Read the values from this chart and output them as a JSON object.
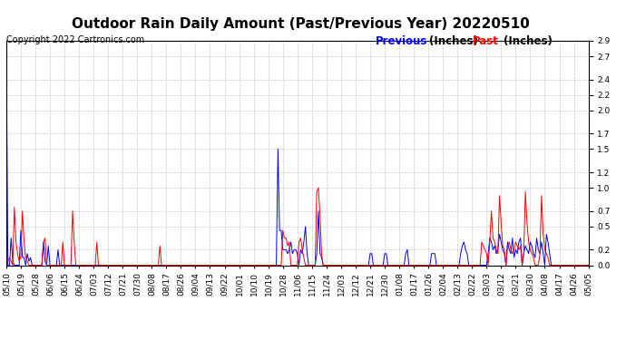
{
  "title": "Outdoor Rain Daily Amount (Past/Previous Year) 20220510",
  "copyright": "Copyright 2022 Cartronics.com",
  "legend_previous": "Previous",
  "legend_past": "Past",
  "legend_units": "(Inches)",
  "ylim": [
    0.0,
    2.9
  ],
  "yticks": [
    0.0,
    0.2,
    0.5,
    0.7,
    1.0,
    1.2,
    1.5,
    1.7,
    2.0,
    2.2,
    2.4,
    2.7,
    2.9
  ],
  "color_previous": "blue",
  "color_past": "red",
  "color_background": "white",
  "color_grid": "#bbbbbb",
  "title_fontsize": 11,
  "tick_fontsize": 6.5,
  "copyright_fontsize": 7,
  "legend_fontsize": 8.5,
  "xtick_labels": [
    "05/10",
    "05/19",
    "05/28",
    "06/06",
    "06/15",
    "06/24",
    "07/03",
    "07/12",
    "07/21",
    "07/30",
    "08/08",
    "08/17",
    "08/26",
    "09/04",
    "09/13",
    "09/22",
    "10/01",
    "10/10",
    "10/19",
    "10/28",
    "11/06",
    "11/15",
    "11/24",
    "12/03",
    "12/12",
    "12/21",
    "12/30",
    "01/08",
    "01/17",
    "01/26",
    "02/04",
    "02/13",
    "02/22",
    "03/03",
    "03/12",
    "03/21",
    "03/30",
    "04/08",
    "04/17",
    "04/26",
    "05/05"
  ],
  "previous_data": [
    2.85,
    0.0,
    0.0,
    0.35,
    0.05,
    0.0,
    0.0,
    0.0,
    0.0,
    0.45,
    0.1,
    0.1,
    0.0,
    0.15,
    0.05,
    0.1,
    0.0,
    0.0,
    0.0,
    0.0,
    0.0,
    0.0,
    0.0,
    0.3,
    0.05,
    0.0,
    0.25,
    0.0,
    0.0,
    0.0,
    0.0,
    0.0,
    0.2,
    0.0,
    0.0,
    0.0,
    0.0,
    0.0,
    0.0,
    0.0,
    0.0,
    0.0,
    0.0,
    0.0,
    0.0,
    0.0,
    0.0,
    0.0,
    0.0,
    0.0,
    0.0,
    0.0,
    0.0,
    0.0,
    0.0,
    0.0,
    0.0,
    0.0,
    0.0,
    0.0,
    0.0,
    0.0,
    0.0,
    0.0,
    0.0,
    0.0,
    0.0,
    0.0,
    0.0,
    0.0,
    0.0,
    0.0,
    0.0,
    0.0,
    0.0,
    0.0,
    0.0,
    0.0,
    0.0,
    0.0,
    0.0,
    0.0,
    0.0,
    0.0,
    0.0,
    0.0,
    0.0,
    0.0,
    0.0,
    0.0,
    0.0,
    0.0,
    0.0,
    0.0,
    0.0,
    0.0,
    0.0,
    0.0,
    0.0,
    0.0,
    0.0,
    0.0,
    0.0,
    0.0,
    0.0,
    0.0,
    0.0,
    0.0,
    0.0,
    0.0,
    0.0,
    0.0,
    0.0,
    0.0,
    0.0,
    0.0,
    0.0,
    0.0,
    0.0,
    0.0,
    0.0,
    0.0,
    0.0,
    0.0,
    0.0,
    0.0,
    0.0,
    0.0,
    0.0,
    0.0,
    0.0,
    0.0,
    0.0,
    0.0,
    0.0,
    0.0,
    0.0,
    0.0,
    0.0,
    0.0,
    0.0,
    0.0,
    0.0,
    0.0,
    0.0,
    0.0,
    0.0,
    0.0,
    0.0,
    0.0,
    0.0,
    0.0,
    0.0,
    0.0,
    0.0,
    0.0,
    0.0,
    0.0,
    0.0,
    0.0,
    0.0,
    0.0,
    0.0,
    0.0,
    0.0,
    0.0,
    0.0,
    0.0,
    1.5,
    0.45,
    0.45,
    0.2,
    0.2,
    0.2,
    0.15,
    0.2,
    0.3,
    0.15,
    0.2,
    0.2,
    0.15,
    0.0,
    0.2,
    0.15,
    0.3,
    0.5,
    0.15,
    0.0,
    0.0,
    0.0,
    0.0,
    0.0,
    0.15,
    0.7,
    0.15,
    0.1,
    0.0,
    0.0,
    0.0,
    0.0,
    0.0,
    0.0,
    0.0,
    0.0,
    0.0,
    0.0,
    0.0,
    0.0,
    0.0,
    0.0,
    0.0,
    0.0,
    0.0,
    0.0,
    0.0,
    0.0,
    0.0,
    0.0,
    0.0,
    0.0,
    0.0,
    0.0,
    0.0,
    0.0,
    0.0,
    0.15,
    0.15,
    0.0,
    0.0,
    0.0,
    0.0,
    0.0,
    0.0,
    0.0,
    0.15,
    0.15,
    0.0,
    0.0,
    0.0,
    0.0,
    0.0,
    0.0,
    0.0,
    0.0,
    0.0,
    0.0,
    0.0,
    0.15,
    0.2,
    0.0,
    0.0,
    0.0,
    0.0,
    0.0,
    0.0,
    0.0,
    0.0,
    0.0,
    0.0,
    0.0,
    0.0,
    0.0,
    0.0,
    0.15,
    0.15,
    0.15,
    0.0,
    0.0,
    0.0,
    0.0,
    0.0,
    0.0,
    0.0,
    0.0,
    0.0,
    0.0,
    0.0,
    0.0,
    0.0,
    0.0,
    0.0,
    0.15,
    0.25,
    0.3,
    0.2,
    0.15,
    0.0,
    0.0,
    0.0,
    0.0,
    0.0,
    0.0,
    0.0,
    0.0,
    0.0,
    0.0,
    0.0,
    0.0,
    0.15,
    0.35,
    0.3,
    0.2,
    0.25,
    0.15,
    0.2,
    0.4,
    0.3,
    0.2,
    0.15,
    0.0,
    0.3,
    0.2,
    0.15,
    0.35,
    0.1,
    0.2,
    0.15,
    0.3,
    0.35,
    0.0,
    0.15,
    0.25,
    0.2,
    0.15,
    0.3,
    0.25,
    0.15,
    0.1,
    0.35,
    0.2,
    0.15,
    0.3,
    0.15,
    0.0,
    0.4,
    0.3,
    0.15,
    0.0,
    0.0,
    0.0,
    0.0,
    0.0,
    0.0,
    0.0,
    0.0,
    0.0,
    0.0,
    0.0,
    0.0,
    0.0,
    0.0,
    0.0,
    0.0,
    0.0,
    0.0,
    0.0,
    0.0,
    0.0,
    0.0,
    0.0,
    0.0
  ],
  "past_data": [
    0.05,
    0.05,
    0.1,
    0.05,
    0.0,
    0.75,
    0.3,
    0.15,
    0.05,
    0.1,
    0.7,
    0.3,
    0.1,
    0.05,
    0.0,
    0.0,
    0.0,
    0.0,
    0.0,
    0.0,
    0.0,
    0.0,
    0.0,
    0.3,
    0.35,
    0.0,
    0.0,
    0.0,
    0.0,
    0.0,
    0.0,
    0.0,
    0.0,
    0.0,
    0.0,
    0.3,
    0.0,
    0.0,
    0.0,
    0.0,
    0.0,
    0.7,
    0.3,
    0.0,
    0.0,
    0.0,
    0.0,
    0.0,
    0.0,
    0.0,
    0.0,
    0.0,
    0.0,
    0.0,
    0.0,
    0.0,
    0.3,
    0.0,
    0.0,
    0.0,
    0.0,
    0.0,
    0.0,
    0.0,
    0.0,
    0.0,
    0.0,
    0.0,
    0.0,
    0.0,
    0.0,
    0.0,
    0.0,
    0.0,
    0.0,
    0.0,
    0.0,
    0.0,
    0.0,
    0.0,
    0.0,
    0.0,
    0.0,
    0.0,
    0.0,
    0.0,
    0.0,
    0.0,
    0.0,
    0.0,
    0.0,
    0.0,
    0.0,
    0.0,
    0.0,
    0.25,
    0.0,
    0.0,
    0.0,
    0.0,
    0.0,
    0.0,
    0.0,
    0.0,
    0.0,
    0.0,
    0.0,
    0.0,
    0.0,
    0.0,
    0.0,
    0.0,
    0.0,
    0.0,
    0.0,
    0.0,
    0.0,
    0.0,
    0.0,
    0.0,
    0.0,
    0.0,
    0.0,
    0.0,
    0.0,
    0.0,
    0.0,
    0.0,
    0.0,
    0.0,
    0.0,
    0.0,
    0.0,
    0.0,
    0.0,
    0.0,
    0.0,
    0.0,
    0.0,
    0.0,
    0.0,
    0.0,
    0.0,
    0.0,
    0.0,
    0.0,
    0.0,
    0.0,
    0.0,
    0.0,
    0.0,
    0.0,
    0.0,
    0.0,
    0.0,
    0.0,
    0.0,
    0.0,
    0.0,
    0.0,
    0.0,
    0.0,
    0.0,
    0.0,
    0.0,
    0.0,
    0.0,
    0.0,
    0.0,
    0.0,
    0.0,
    0.45,
    0.35,
    0.35,
    0.25,
    0.3,
    0.0,
    0.0,
    0.0,
    0.0,
    0.0,
    0.3,
    0.35,
    0.2,
    0.1,
    0.0,
    0.0,
    0.0,
    0.0,
    0.0,
    0.0,
    0.0,
    0.95,
    1.0,
    0.65,
    0.15,
    0.0,
    0.0,
    0.0,
    0.0,
    0.0,
    0.0,
    0.0,
    0.0,
    0.0,
    0.0,
    0.0,
    0.0,
    0.0,
    0.0,
    0.0,
    0.0,
    0.0,
    0.0,
    0.0,
    0.0,
    0.0,
    0.0,
    0.0,
    0.0,
    0.0,
    0.0,
    0.0,
    0.0,
    0.0,
    0.0,
    0.0,
    0.0,
    0.0,
    0.0,
    0.0,
    0.0,
    0.0,
    0.0,
    0.0,
    0.0,
    0.0,
    0.0,
    0.0,
    0.0,
    0.0,
    0.0,
    0.0,
    0.0,
    0.0,
    0.0,
    0.0,
    0.0,
    0.0,
    0.0,
    0.0,
    0.0,
    0.0,
    0.0,
    0.0,
    0.0,
    0.0,
    0.0,
    0.0,
    0.0,
    0.0,
    0.0,
    0.0,
    0.0,
    0.0,
    0.0,
    0.0,
    0.0,
    0.0,
    0.0,
    0.0,
    0.0,
    0.0,
    0.0,
    0.0,
    0.0,
    0.0,
    0.0,
    0.0,
    0.0,
    0.0,
    0.0,
    0.0,
    0.0,
    0.0,
    0.0,
    0.0,
    0.0,
    0.0,
    0.0,
    0.0,
    0.0,
    0.0,
    0.0,
    0.3,
    0.25,
    0.2,
    0.15,
    0.0,
    0.3,
    0.7,
    0.35,
    0.3,
    0.2,
    0.15,
    0.9,
    0.55,
    0.25,
    0.2,
    0.0,
    0.25,
    0.3,
    0.2,
    0.15,
    0.2,
    0.3,
    0.25,
    0.2,
    0.25,
    0.0,
    0.15,
    0.95,
    0.55,
    0.3,
    0.2,
    0.15,
    0.1,
    0.0,
    0.0,
    0.0,
    0.15,
    0.9,
    0.4,
    0.2,
    0.15,
    0.1,
    0.0,
    0.0,
    0.0,
    0.0,
    0.0,
    0.0,
    0.0,
    0.0,
    0.0,
    0.0,
    0.0,
    0.0,
    0.0,
    0.0,
    0.0,
    0.0,
    0.0,
    0.0,
    0.0,
    0.0,
    0.0,
    0.0,
    0.0,
    0.0,
    0.0
  ]
}
